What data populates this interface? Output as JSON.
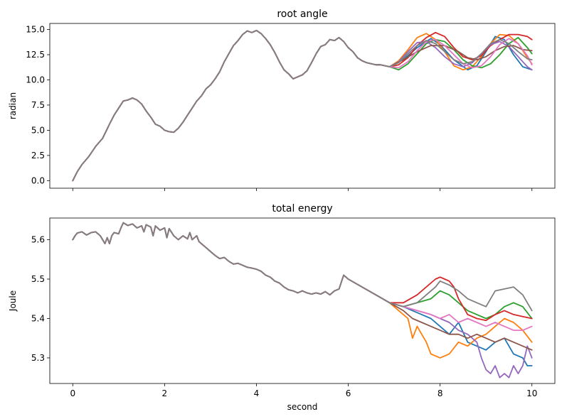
{
  "chart_data": [
    {
      "type": "line",
      "title": "root angle",
      "xlabel": "",
      "ylabel": "radian",
      "xlim": [
        -0.5,
        10.5
      ],
      "ylim": [
        -0.75,
        15.6
      ],
      "xticks": [
        0,
        2,
        4,
        6,
        8,
        10
      ],
      "xtick_labels_visible": false,
      "yticks": [
        0.0,
        2.5,
        5.0,
        7.5,
        10.0,
        12.5,
        15.0
      ],
      "ytick_labels": [
        "0.0",
        "2.5",
        "5.0",
        "7.5",
        "10.0",
        "12.5",
        "15.0"
      ],
      "grid": false,
      "shared_trace": {
        "x": [
          0,
          0.1,
          0.2,
          0.35,
          0.5,
          0.65,
          0.8,
          0.9,
          1.0,
          1.1,
          1.2,
          1.3,
          1.4,
          1.5,
          1.6,
          1.7,
          1.8,
          1.9,
          2.0,
          2.1,
          2.2,
          2.3,
          2.4,
          2.5,
          2.6,
          2.7,
          2.8,
          2.9,
          3.0,
          3.1,
          3.2,
          3.3,
          3.4,
          3.5,
          3.6,
          3.7,
          3.8,
          3.9,
          4.0,
          4.1,
          4.2,
          4.3,
          4.4,
          4.5,
          4.6,
          4.7,
          4.8,
          4.9,
          5.0,
          5.1,
          5.2,
          5.3,
          5.4,
          5.5,
          5.6,
          5.7,
          5.8,
          5.9,
          6.0,
          6.1,
          6.2,
          6.3,
          6.4,
          6.5,
          6.6,
          6.7,
          6.8,
          6.9
        ],
        "y": [
          0.0,
          0.9,
          1.6,
          2.4,
          3.4,
          4.2,
          5.6,
          6.5,
          7.2,
          7.9,
          8.0,
          8.2,
          8.0,
          7.6,
          6.9,
          6.3,
          5.6,
          5.4,
          5.0,
          4.85,
          4.8,
          5.2,
          5.8,
          6.5,
          7.2,
          7.9,
          8.4,
          9.1,
          9.5,
          10.1,
          10.8,
          11.8,
          12.6,
          13.4,
          13.9,
          14.5,
          14.85,
          14.7,
          14.9,
          14.6,
          14.1,
          13.5,
          12.7,
          11.8,
          11.0,
          10.6,
          10.1,
          10.3,
          10.5,
          10.9,
          11.7,
          12.6,
          13.3,
          13.5,
          14.0,
          13.9,
          14.2,
          13.8,
          13.2,
          12.8,
          12.2,
          11.9,
          11.7,
          11.6,
          11.5,
          11.5,
          11.4,
          11.3
        ]
      },
      "series": [
        {
          "color": "#1f77b4",
          "x": [
            6.9,
            7.2,
            7.5,
            7.8,
            8.0,
            8.3,
            8.6,
            8.8,
            9.0,
            9.2,
            9.4,
            9.6,
            9.8,
            10.0
          ],
          "y": [
            11.3,
            12.0,
            13.2,
            14.1,
            13.5,
            12.0,
            11.0,
            11.4,
            12.8,
            14.3,
            14.0,
            12.5,
            11.3,
            11.0
          ]
        },
        {
          "color": "#ff7f0e",
          "x": [
            6.9,
            7.1,
            7.3,
            7.5,
            7.7,
            7.9,
            8.1,
            8.3,
            8.5,
            8.7,
            8.9,
            9.1,
            9.3,
            9.5,
            9.7,
            9.9,
            10.0
          ],
          "y": [
            11.3,
            11.9,
            13.0,
            14.2,
            14.6,
            14.0,
            12.8,
            11.4,
            11.0,
            11.3,
            12.3,
            13.6,
            14.5,
            14.4,
            13.6,
            12.2,
            11.6
          ]
        },
        {
          "color": "#2ca02c",
          "x": [
            6.9,
            7.1,
            7.3,
            7.5,
            7.7,
            7.9,
            8.1,
            8.3,
            8.5,
            8.7,
            8.9,
            9.1,
            9.3,
            9.5,
            9.7,
            9.9,
            10.0
          ],
          "y": [
            11.3,
            11.0,
            11.6,
            12.6,
            13.6,
            14.0,
            13.8,
            13.0,
            12.0,
            11.4,
            11.2,
            11.6,
            12.5,
            13.6,
            14.2,
            13.2,
            12.6
          ]
        },
        {
          "color": "#d62728",
          "x": [
            6.9,
            7.1,
            7.3,
            7.5,
            7.7,
            7.9,
            8.1,
            8.3,
            8.5,
            8.7,
            8.9,
            9.1,
            9.3,
            9.5,
            9.7,
            9.9,
            10.0
          ],
          "y": [
            11.3,
            11.5,
            12.2,
            13.4,
            14.2,
            14.7,
            14.3,
            13.2,
            12.3,
            12.0,
            12.4,
            13.4,
            14.0,
            14.5,
            14.5,
            14.3,
            14.0
          ]
        },
        {
          "color": "#9467bd",
          "x": [
            6.9,
            7.1,
            7.3,
            7.5,
            7.7,
            7.9,
            8.1,
            8.3,
            8.5,
            8.7,
            8.9,
            9.1,
            9.3,
            9.5,
            9.7,
            9.9,
            10.0
          ],
          "y": [
            11.3,
            11.8,
            12.8,
            13.7,
            13.8,
            13.2,
            12.3,
            11.6,
            11.3,
            11.7,
            12.6,
            13.5,
            13.8,
            13.3,
            12.3,
            11.3,
            11.0
          ]
        },
        {
          "color": "#8c564b",
          "x": [
            6.9,
            7.2,
            7.5,
            7.8,
            8.1,
            8.4,
            8.6,
            8.8,
            9.0,
            9.2,
            9.4,
            9.6,
            9.8,
            10.0
          ],
          "y": [
            11.3,
            12.0,
            12.8,
            13.4,
            13.4,
            12.8,
            12.2,
            12.0,
            12.3,
            12.9,
            13.3,
            13.4,
            13.0,
            12.9
          ]
        },
        {
          "color": "#e377c2",
          "x": [
            6.9,
            7.1,
            7.3,
            7.5,
            7.7,
            7.9,
            8.1,
            8.3,
            8.5,
            8.7,
            8.9,
            9.1,
            9.3,
            9.5,
            9.7,
            9.9,
            10.0
          ],
          "y": [
            11.3,
            11.2,
            11.8,
            12.9,
            13.8,
            14.0,
            13.4,
            12.5,
            11.6,
            11.2,
            11.4,
            12.3,
            13.5,
            14.1,
            13.6,
            12.4,
            11.5
          ]
        },
        {
          "color": "#7f7f7f",
          "x": [
            6.9,
            7.1,
            7.3,
            7.5,
            7.7,
            7.9,
            8.1,
            8.3,
            8.5,
            8.7,
            8.9,
            9.1,
            9.3,
            9.5,
            9.7,
            9.9,
            10.0
          ],
          "y": [
            11.3,
            11.7,
            12.6,
            13.4,
            13.9,
            13.6,
            12.8,
            12.0,
            11.6,
            11.8,
            12.6,
            13.6,
            14.0,
            13.6,
            12.8,
            12.1,
            12.0
          ]
        }
      ]
    },
    {
      "type": "line",
      "title": "total energy",
      "xlabel": "second",
      "ylabel": "Joule",
      "xlim": [
        -0.5,
        10.5
      ],
      "ylim": [
        5.235,
        5.655
      ],
      "xticks": [
        0,
        2,
        4,
        6,
        8,
        10
      ],
      "xtick_labels": [
        "0",
        "2",
        "4",
        "6",
        "8",
        "10"
      ],
      "yticks": [
        5.3,
        5.4,
        5.5,
        5.6
      ],
      "ytick_labels": [
        "5.3",
        "5.4",
        "5.5",
        "5.6"
      ],
      "grid": false,
      "shared_trace": {
        "x": [
          0,
          0.05,
          0.1,
          0.2,
          0.3,
          0.4,
          0.5,
          0.6,
          0.65,
          0.7,
          0.75,
          0.8,
          0.85,
          0.9,
          1.0,
          1.05,
          1.1,
          1.2,
          1.3,
          1.4,
          1.5,
          1.55,
          1.6,
          1.7,
          1.75,
          1.8,
          1.9,
          2.0,
          2.05,
          2.1,
          2.2,
          2.3,
          2.4,
          2.5,
          2.55,
          2.6,
          2.7,
          2.75,
          2.8,
          2.9,
          3.0,
          3.1,
          3.2,
          3.3,
          3.4,
          3.5,
          3.6,
          3.7,
          3.8,
          3.9,
          4.0,
          4.1,
          4.2,
          4.3,
          4.4,
          4.5,
          4.6,
          4.7,
          4.8,
          4.9,
          5.0,
          5.1,
          5.2,
          5.3,
          5.4,
          5.5,
          5.6,
          5.7,
          5.8,
          5.9,
          6.0
        ],
        "y": [
          5.6,
          5.61,
          5.617,
          5.62,
          5.612,
          5.618,
          5.62,
          5.61,
          5.6,
          5.59,
          5.605,
          5.59,
          5.61,
          5.618,
          5.615,
          5.63,
          5.643,
          5.636,
          5.64,
          5.63,
          5.635,
          5.62,
          5.638,
          5.632,
          5.61,
          5.635,
          5.624,
          5.63,
          5.605,
          5.628,
          5.61,
          5.6,
          5.61,
          5.602,
          5.618,
          5.6,
          5.61,
          5.595,
          5.59,
          5.58,
          5.57,
          5.56,
          5.552,
          5.555,
          5.545,
          5.538,
          5.54,
          5.535,
          5.53,
          5.528,
          5.525,
          5.52,
          5.51,
          5.505,
          5.495,
          5.49,
          5.48,
          5.473,
          5.47,
          5.465,
          5.47,
          5.465,
          5.462,
          5.465,
          5.462,
          5.468,
          5.46,
          5.47,
          5.475,
          5.51,
          5.5
        ]
      },
      "series": [
        {
          "color": "#1f77b4",
          "x": [
            6.0,
            6.3,
            6.6,
            6.9,
            7.2,
            7.4,
            7.6,
            7.8,
            8.0,
            8.2,
            8.4,
            8.6,
            8.8,
            9.0,
            9.2,
            9.4,
            9.6,
            9.8,
            9.9,
            10.0
          ],
          "y": [
            5.5,
            5.48,
            5.46,
            5.44,
            5.43,
            5.42,
            5.41,
            5.4,
            5.38,
            5.36,
            5.39,
            5.34,
            5.33,
            5.32,
            5.34,
            5.35,
            5.31,
            5.3,
            5.28,
            5.28
          ]
        },
        {
          "color": "#ff7f0e",
          "x": [
            6.0,
            6.3,
            6.6,
            6.9,
            7.1,
            7.3,
            7.4,
            7.5,
            7.6,
            7.7,
            7.8,
            8.0,
            8.2,
            8.4,
            8.6,
            8.8,
            9.0,
            9.2,
            9.4,
            9.6,
            9.8,
            10.0
          ],
          "y": [
            5.5,
            5.48,
            5.46,
            5.44,
            5.42,
            5.4,
            5.35,
            5.38,
            5.36,
            5.34,
            5.31,
            5.3,
            5.31,
            5.34,
            5.33,
            5.35,
            5.36,
            5.38,
            5.4,
            5.39,
            5.37,
            5.34
          ]
        },
        {
          "color": "#2ca02c",
          "x": [
            6.0,
            6.3,
            6.6,
            6.9,
            7.2,
            7.5,
            7.8,
            8.0,
            8.2,
            8.4,
            8.6,
            8.8,
            9.0,
            9.2,
            9.4,
            9.6,
            9.8,
            10.0
          ],
          "y": [
            5.5,
            5.48,
            5.46,
            5.44,
            5.43,
            5.44,
            5.45,
            5.47,
            5.46,
            5.44,
            5.42,
            5.41,
            5.4,
            5.41,
            5.43,
            5.44,
            5.43,
            5.4
          ]
        },
        {
          "color": "#d62728",
          "x": [
            6.0,
            6.3,
            6.6,
            6.9,
            7.2,
            7.5,
            7.8,
            7.9,
            8.0,
            8.1,
            8.2,
            8.3,
            8.4,
            8.5,
            8.6,
            8.8,
            9.0,
            9.2,
            9.4,
            9.6,
            9.8,
            10.0
          ],
          "y": [
            5.5,
            5.48,
            5.46,
            5.44,
            5.44,
            5.46,
            5.49,
            5.5,
            5.505,
            5.5,
            5.495,
            5.48,
            5.45,
            5.43,
            5.41,
            5.4,
            5.395,
            5.41,
            5.42,
            5.41,
            5.405,
            5.4
          ]
        },
        {
          "color": "#9467bd",
          "x": [
            6.0,
            6.3,
            6.6,
            6.9,
            7.2,
            7.5,
            7.8,
            8.0,
            8.2,
            8.4,
            8.6,
            8.8,
            8.9,
            9.0,
            9.1,
            9.2,
            9.3,
            9.4,
            9.5,
            9.6,
            9.7,
            9.8,
            9.9,
            10.0
          ],
          "y": [
            5.5,
            5.48,
            5.46,
            5.44,
            5.43,
            5.42,
            5.41,
            5.4,
            5.39,
            5.37,
            5.36,
            5.34,
            5.3,
            5.27,
            5.26,
            5.28,
            5.25,
            5.26,
            5.25,
            5.28,
            5.26,
            5.28,
            5.33,
            5.3
          ]
        },
        {
          "color": "#8c564b",
          "x": [
            6.0,
            6.3,
            6.6,
            6.9,
            7.2,
            7.4,
            7.6,
            7.8,
            8.0,
            8.2,
            8.4,
            8.6,
            8.8,
            9.0,
            9.2,
            9.4,
            9.6,
            9.8,
            10.0
          ],
          "y": [
            5.5,
            5.48,
            5.46,
            5.44,
            5.42,
            5.4,
            5.39,
            5.38,
            5.37,
            5.36,
            5.36,
            5.35,
            5.36,
            5.35,
            5.34,
            5.35,
            5.34,
            5.33,
            5.32
          ]
        },
        {
          "color": "#e377c2",
          "x": [
            6.0,
            6.3,
            6.6,
            6.9,
            7.2,
            7.5,
            7.8,
            8.0,
            8.2,
            8.4,
            8.6,
            8.8,
            9.0,
            9.2,
            9.4,
            9.6,
            9.8,
            10.0
          ],
          "y": [
            5.5,
            5.48,
            5.46,
            5.44,
            5.43,
            5.42,
            5.41,
            5.4,
            5.41,
            5.39,
            5.4,
            5.39,
            5.38,
            5.39,
            5.38,
            5.37,
            5.37,
            5.38
          ]
        },
        {
          "color": "#7f7f7f",
          "x": [
            6.0,
            6.3,
            6.6,
            6.9,
            7.2,
            7.5,
            7.7,
            7.9,
            8.0,
            8.2,
            8.4,
            8.6,
            8.8,
            9.0,
            9.2,
            9.4,
            9.6,
            9.8,
            10.0
          ],
          "y": [
            5.5,
            5.48,
            5.46,
            5.44,
            5.43,
            5.44,
            5.46,
            5.48,
            5.495,
            5.485,
            5.47,
            5.45,
            5.44,
            5.43,
            5.47,
            5.475,
            5.48,
            5.46,
            5.42
          ]
        }
      ]
    }
  ]
}
